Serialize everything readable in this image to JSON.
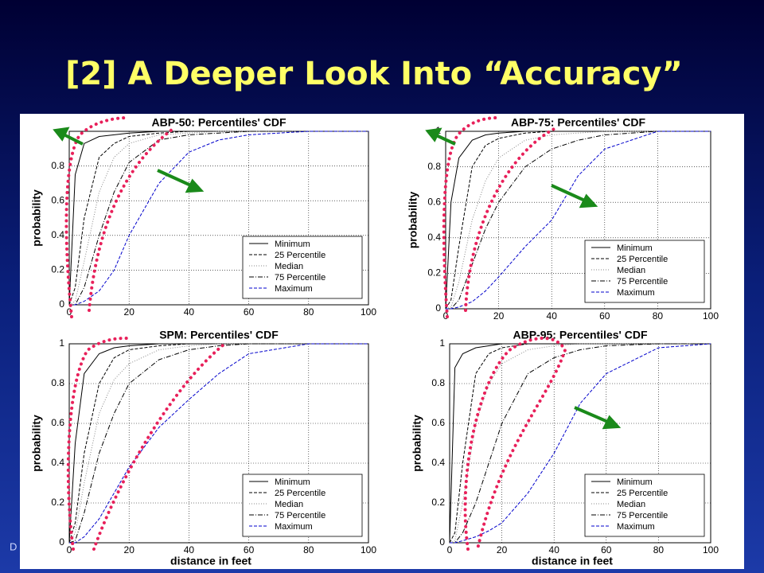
{
  "slide_title": "[2] A Deeper Look Into “Accuracy”",
  "footer": "D",
  "chart_data": [
    {
      "type": "line",
      "title": "ABP-50: Percentiles' CDF",
      "ylabel": "probability",
      "x": [
        0,
        2,
        5,
        10,
        15,
        20,
        30,
        40,
        50,
        60,
        80,
        100
      ],
      "xlim": [
        0,
        100
      ],
      "ylim": [
        0,
        1
      ],
      "xticks": [
        0,
        20,
        40,
        60,
        80,
        100
      ],
      "yticks": [
        0,
        0.2,
        0.4,
        0.6,
        0.8
      ],
      "grid": true,
      "legend": "lower right",
      "series": [
        {
          "name": "Minimum",
          "color": "#000000",
          "dash": "solid",
          "values": [
            0,
            0.75,
            0.93,
            0.97,
            0.98,
            0.99,
            1,
            1,
            1,
            1,
            1,
            1
          ]
        },
        {
          "name": "25 Percentile",
          "color": "#000000",
          "dash": "dashed",
          "values": [
            0,
            0.1,
            0.5,
            0.85,
            0.93,
            0.97,
            0.99,
            1,
            1,
            1,
            1,
            1
          ]
        },
        {
          "name": "Median",
          "color": "#888888",
          "dash": "dotted",
          "values": [
            0,
            0.02,
            0.25,
            0.65,
            0.85,
            0.93,
            0.98,
            0.99,
            1,
            1,
            1,
            1
          ]
        },
        {
          "name": "75 Percentile",
          "color": "#000000",
          "dash": "dashdot",
          "values": [
            0,
            0,
            0.1,
            0.4,
            0.65,
            0.82,
            0.95,
            0.98,
            0.99,
            1,
            1,
            1
          ]
        },
        {
          "name": "Maximum",
          "color": "#0000cc",
          "dash": "dashed",
          "values": [
            0,
            0,
            0.02,
            0.08,
            0.2,
            0.4,
            0.7,
            0.88,
            0.95,
            0.98,
            1,
            1
          ]
        }
      ]
    },
    {
      "type": "line",
      "title": "ABP-75: Percentiles' CDF",
      "ylabel": "probability",
      "x": [
        0,
        2,
        5,
        10,
        15,
        20,
        30,
        40,
        50,
        60,
        80,
        100
      ],
      "xlim": [
        0,
        100
      ],
      "ylim": [
        0,
        1
      ],
      "xticks": [
        0,
        20,
        40,
        60,
        80,
        100
      ],
      "yticks": [
        0,
        0.2,
        0.4,
        0.6,
        0.8,
        1
      ],
      "grid": true,
      "legend": "lower right",
      "series": [
        {
          "name": "Minimum",
          "color": "#000000",
          "dash": "solid",
          "values": [
            0,
            0.6,
            0.85,
            0.95,
            0.98,
            0.99,
            1,
            1,
            1,
            1,
            1,
            1
          ]
        },
        {
          "name": "25 Percentile",
          "color": "#000000",
          "dash": "dashed",
          "values": [
            0,
            0.05,
            0.35,
            0.8,
            0.92,
            0.96,
            0.99,
            1,
            1,
            1,
            1,
            1
          ]
        },
        {
          "name": "Median",
          "color": "#888888",
          "dash": "dotted",
          "values": [
            0,
            0.01,
            0.15,
            0.5,
            0.72,
            0.85,
            0.95,
            0.98,
            0.99,
            1,
            1,
            1
          ]
        },
        {
          "name": "75 Percentile",
          "color": "#000000",
          "dash": "dashdot",
          "values": [
            0,
            0,
            0.05,
            0.25,
            0.45,
            0.6,
            0.8,
            0.9,
            0.95,
            0.98,
            1,
            1
          ]
        },
        {
          "name": "Maximum",
          "color": "#0000cc",
          "dash": "dashed",
          "values": [
            0,
            0,
            0.01,
            0.04,
            0.1,
            0.18,
            0.35,
            0.5,
            0.75,
            0.9,
            1,
            1
          ]
        }
      ]
    },
    {
      "type": "line",
      "title": "SPM: Percentiles' CDF",
      "ylabel": "probability",
      "xlabel": "distance in feet",
      "x": [
        0,
        2,
        5,
        10,
        15,
        20,
        30,
        40,
        50,
        60,
        80,
        100
      ],
      "xlim": [
        0,
        100
      ],
      "ylim": [
        0,
        1
      ],
      "xticks": [
        0,
        20,
        40,
        60,
        80,
        100
      ],
      "yticks": [
        0,
        0.2,
        0.4,
        0.6,
        0.8,
        1
      ],
      "grid": true,
      "legend": "lower right",
      "series": [
        {
          "name": "Minimum",
          "color": "#000000",
          "dash": "solid",
          "values": [
            0,
            0.5,
            0.85,
            0.95,
            0.98,
            0.99,
            1,
            1,
            1,
            1,
            1,
            1
          ]
        },
        {
          "name": "25 Percentile",
          "color": "#000000",
          "dash": "dashed",
          "values": [
            0,
            0.1,
            0.45,
            0.8,
            0.93,
            0.97,
            0.99,
            1,
            1,
            1,
            1,
            1
          ]
        },
        {
          "name": "Median",
          "color": "#888888",
          "dash": "dotted",
          "values": [
            0,
            0.05,
            0.3,
            0.65,
            0.82,
            0.9,
            0.97,
            0.99,
            1,
            1,
            1,
            1
          ]
        },
        {
          "name": "75 Percentile",
          "color": "#000000",
          "dash": "dashdot",
          "values": [
            0,
            0.01,
            0.15,
            0.45,
            0.65,
            0.8,
            0.92,
            0.97,
            0.99,
            1,
            1,
            1
          ]
        },
        {
          "name": "Maximum",
          "color": "#0000cc",
          "dash": "dashed",
          "values": [
            0,
            0,
            0.03,
            0.12,
            0.25,
            0.38,
            0.58,
            0.72,
            0.85,
            0.95,
            1,
            1
          ]
        }
      ]
    },
    {
      "type": "line",
      "title": "ABP-95: Percentiles' CDF",
      "ylabel": "probability",
      "xlabel": "distance in feet",
      "x": [
        0,
        2,
        5,
        10,
        15,
        20,
        30,
        40,
        50,
        60,
        80,
        100
      ],
      "xlim": [
        0,
        100
      ],
      "ylim": [
        0,
        1
      ],
      "xticks": [
        0,
        20,
        40,
        60,
        80,
        100
      ],
      "yticks": [
        0,
        0.2,
        0.4,
        0.6,
        0.8,
        1
      ],
      "grid": true,
      "legend": "lower right",
      "series": [
        {
          "name": "Minimum",
          "color": "#000000",
          "dash": "solid",
          "values": [
            0,
            0.88,
            0.95,
            0.98,
            0.99,
            1,
            1,
            1,
            1,
            1,
            1,
            1
          ]
        },
        {
          "name": "25 Percentile",
          "color": "#000000",
          "dash": "dashed",
          "values": [
            0,
            0.05,
            0.4,
            0.85,
            0.95,
            0.98,
            1,
            1,
            1,
            1,
            1,
            1
          ]
        },
        {
          "name": "Median",
          "color": "#888888",
          "dash": "dotted",
          "values": [
            0,
            0.01,
            0.2,
            0.6,
            0.8,
            0.9,
            0.97,
            0.99,
            1,
            1,
            1,
            1
          ]
        },
        {
          "name": "75 Percentile",
          "color": "#000000",
          "dash": "dashdot",
          "values": [
            0,
            0,
            0.05,
            0.2,
            0.4,
            0.6,
            0.85,
            0.93,
            0.97,
            0.99,
            1,
            1
          ]
        },
        {
          "name": "Maximum",
          "color": "#0000cc",
          "dash": "dashed",
          "values": [
            0,
            0,
            0.01,
            0.03,
            0.06,
            0.1,
            0.25,
            0.45,
            0.7,
            0.85,
            0.98,
            1
          ]
        }
      ]
    }
  ]
}
